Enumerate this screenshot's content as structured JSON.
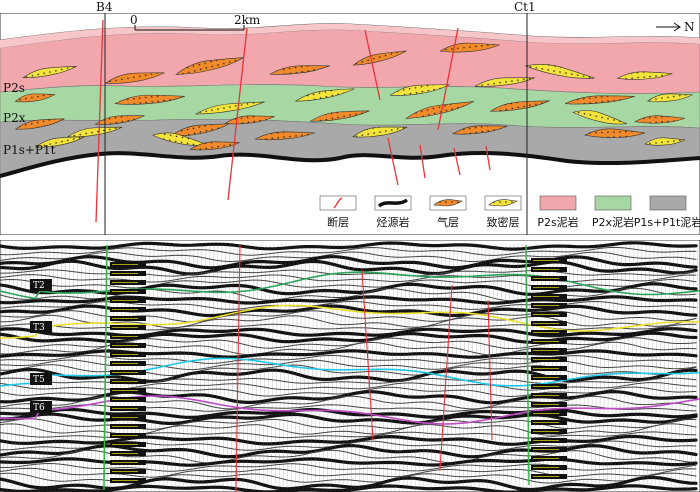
{
  "section": {
    "wells": [
      "B4",
      "Ct1"
    ],
    "scale_bar": {
      "start": "0",
      "end": "2km"
    },
    "north_label": "N",
    "layer_labels": [
      "P2s",
      "P2x",
      "P1s+P1t"
    ],
    "legend": [
      {
        "key": "fault",
        "label": "断层",
        "color": "#e8333a"
      },
      {
        "key": "source-rock",
        "label": "烃源岩",
        "color": "#111111"
      },
      {
        "key": "gas-layer",
        "label": "气层",
        "color": "#f08a2a"
      },
      {
        "key": "tight-layer",
        "label": "致密层",
        "color": "#f3e33c"
      },
      {
        "key": "p2s-mudstone",
        "label": "P2s泥岩",
        "color": "#f2a7ad"
      },
      {
        "key": "p2x-mudstone",
        "label": "P2x泥岩",
        "color": "#a7d8a4"
      },
      {
        "key": "p1s-p1t-mudstone",
        "label": "P1s+P1t泥岩",
        "color": "#a9a9a9"
      }
    ]
  },
  "seismic": {
    "horizons": [
      {
        "label": "T2",
        "color": "#2aa55a"
      },
      {
        "label": "T3",
        "color": "#e8df2a"
      },
      {
        "label": "T5",
        "color": "#1fc8e8"
      },
      {
        "label": "T6",
        "color": "#c04ac8"
      }
    ]
  }
}
